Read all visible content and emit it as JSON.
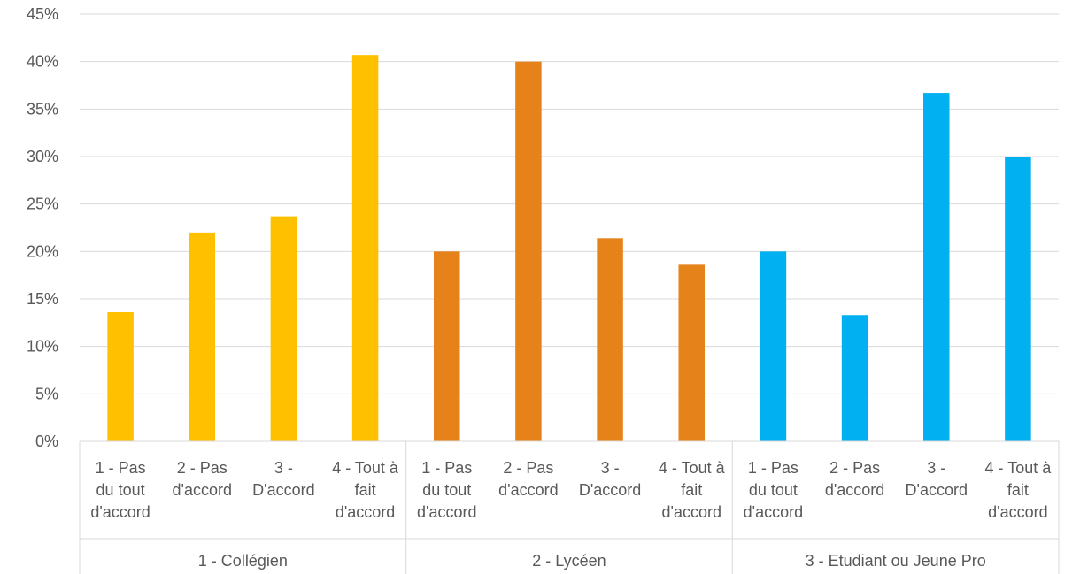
{
  "chart_data": {
    "type": "bar",
    "ylim": [
      0,
      45
    ],
    "y_tick_step": 5,
    "y_tick_format": "percent",
    "grid": true,
    "legend": "none",
    "groups": [
      {
        "label": "1 - Collégien",
        "color": "#FFC000",
        "categories": [
          [
            "1 - Pas",
            "du tout",
            "d'accord"
          ],
          [
            "2 - Pas",
            "d'accord"
          ],
          [
            "3 -",
            "D'accord"
          ],
          [
            "4 - Tout à",
            "fait",
            "d'accord"
          ]
        ],
        "values": [
          13.6,
          22.0,
          23.7,
          40.7
        ]
      },
      {
        "label": "2 - Lycéen",
        "color": "#E6821A",
        "categories": [
          [
            "1 - Pas",
            "du tout",
            "d'accord"
          ],
          [
            "2 - Pas",
            "d'accord"
          ],
          [
            "3 -",
            "D'accord"
          ],
          [
            "4 - Tout à",
            "fait",
            "d'accord"
          ]
        ],
        "values": [
          20.0,
          40.0,
          21.4,
          18.6
        ]
      },
      {
        "label": "3 - Etudiant ou Jeune Pro",
        "color": "#00B0F0",
        "categories": [
          [
            "1 - Pas",
            "du tout",
            "d'accord"
          ],
          [
            "2 - Pas",
            "d'accord"
          ],
          [
            "3 -",
            "D'accord"
          ],
          [
            "4 - Tout à",
            "fait",
            "d'accord"
          ]
        ],
        "values": [
          20.0,
          13.3,
          36.7,
          30.0
        ]
      }
    ]
  }
}
